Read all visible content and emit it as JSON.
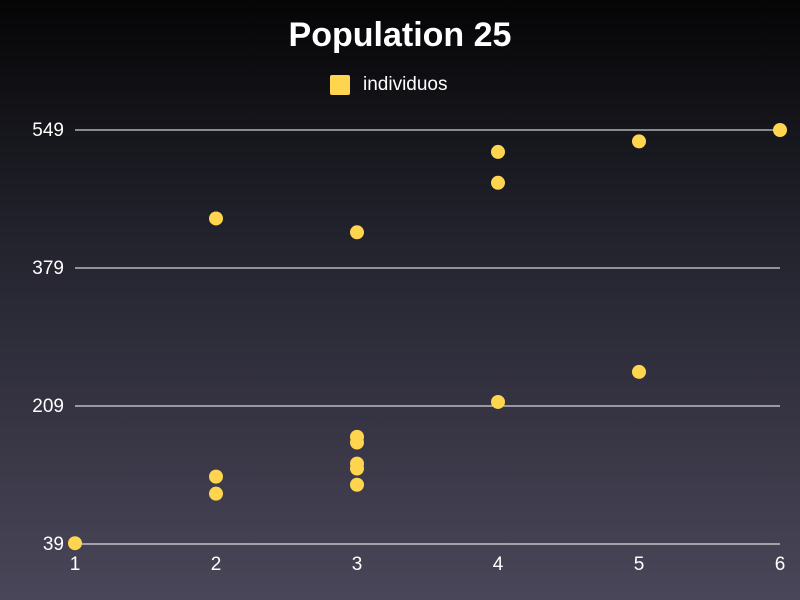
{
  "chart_data": {
    "type": "scatter",
    "title": "Population 25",
    "xlabel": "",
    "ylabel": "",
    "xlim": [
      1,
      6
    ],
    "ylim": [
      39,
      549
    ],
    "x_ticks": [
      1,
      2,
      3,
      4,
      5,
      6
    ],
    "y_ticks": [
      39,
      209,
      379,
      549
    ],
    "grid": "horizontal",
    "legend_position": "top-center",
    "series": [
      {
        "name": "individuos",
        "color": "#ffd54f",
        "points": [
          {
            "x": 1,
            "y": 40
          },
          {
            "x": 2,
            "y": 101
          },
          {
            "x": 2,
            "y": 122
          },
          {
            "x": 2,
            "y": 440
          },
          {
            "x": 3,
            "y": 112
          },
          {
            "x": 3,
            "y": 132
          },
          {
            "x": 3,
            "y": 138
          },
          {
            "x": 3,
            "y": 164
          },
          {
            "x": 3,
            "y": 171
          },
          {
            "x": 3,
            "y": 423
          },
          {
            "x": 4,
            "y": 214
          },
          {
            "x": 4,
            "y": 484
          },
          {
            "x": 4,
            "y": 522
          },
          {
            "x": 5,
            "y": 251
          },
          {
            "x": 5,
            "y": 535
          },
          {
            "x": 6,
            "y": 549
          }
        ]
      }
    ]
  }
}
